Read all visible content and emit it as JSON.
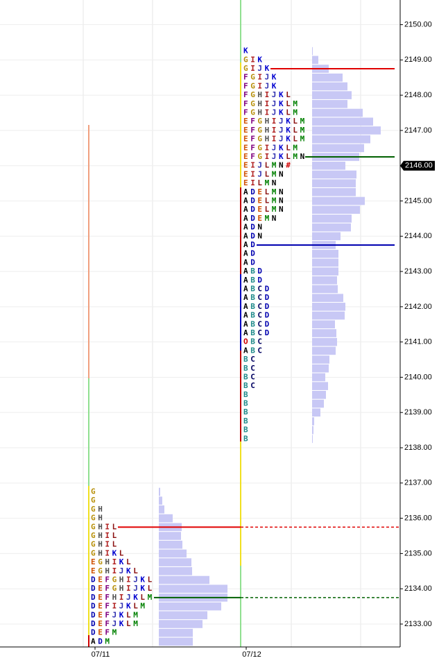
{
  "chart_data": {
    "type": "tpo",
    "ylim": [
      2132.35,
      2150.7
    ],
    "yticks": [
      {
        "value": 2133,
        "label": "2133.00"
      },
      {
        "value": 2134,
        "label": "2134.00"
      },
      {
        "value": 2135,
        "label": "2135.00"
      },
      {
        "value": 2136,
        "label": "2136.00"
      },
      {
        "value": 2137,
        "label": "2137.00"
      },
      {
        "value": 2138,
        "label": "2138.00"
      },
      {
        "value": 2139,
        "label": "2139.00"
      },
      {
        "value": 2140,
        "label": "2140.00"
      },
      {
        "value": 2141,
        "label": "2141.00"
      },
      {
        "value": 2142,
        "label": "2142.00"
      },
      {
        "value": 2143,
        "label": "2143.00"
      },
      {
        "value": 2144,
        "label": "2144.00"
      },
      {
        "value": 2145,
        "label": "2145.00"
      },
      {
        "value": 2146,
        "label": "2146.00"
      },
      {
        "value": 2147,
        "label": "2147.00"
      },
      {
        "value": 2148,
        "label": "2148.00"
      },
      {
        "value": 2149,
        "label": "2149.00"
      },
      {
        "value": 2150,
        "label": "2150.00"
      }
    ],
    "last_price": {
      "value": 2146,
      "label": "2146.00"
    },
    "volume_color": "#c8c8f5",
    "letter_colors": {
      "A": "#000000",
      "B": "#1f8a8a",
      "C": "#000060",
      "D": "#0000b0",
      "E": "#d05000",
      "F": "#800080",
      "G": "#b8900b",
      "H": "#505050",
      "I": "#b02020",
      "J": "#3030b0",
      "K": "#0000d0",
      "L": "#8b1010",
      "M": "#008000",
      "N": "#000000",
      "O": "#d00000",
      "#": "#d00000"
    },
    "sessions": [
      {
        "date": "07/11",
        "lines": [
          {
            "price": 2135.75,
            "color": "#e00000"
          },
          {
            "price": 2133.75,
            "color": "#006000"
          }
        ],
        "rows": [
          {
            "price": 2136.75,
            "tpo": "G",
            "volume": 2
          },
          {
            "price": 2136.5,
            "tpo": "G",
            "volume": 5
          },
          {
            "price": 2136.25,
            "tpo": "GH",
            "volume": 8
          },
          {
            "price": 2136,
            "tpo": "GH",
            "volume": 20
          },
          {
            "price": 2135.75,
            "tpo": "GHIL",
            "volume": 33
          },
          {
            "price": 2135.5,
            "tpo": "GHIL",
            "volume": 32
          },
          {
            "price": 2135.25,
            "tpo": "GHIL",
            "volume": 34
          },
          {
            "price": 2135,
            "tpo": "GHIKL",
            "volume": 40
          },
          {
            "price": 2134.75,
            "tpo": "EGHIKL",
            "volume": 47
          },
          {
            "price": 2134.5,
            "tpo": "EGHIJKL",
            "volume": 48
          },
          {
            "price": 2134.25,
            "tpo": "DEFGHIJKL",
            "volume": 73
          },
          {
            "price": 2134,
            "tpo": "DEFGHIJKL",
            "volume": 99
          },
          {
            "price": 2133.75,
            "tpo": "DEFHIJKLM",
            "volume": 99
          },
          {
            "price": 2133.5,
            "tpo": "DEFIJKLM",
            "volume": 90
          },
          {
            "price": 2133.25,
            "tpo": "DEFJKLM",
            "volume": 70
          },
          {
            "price": 2133,
            "tpo": "DEFJKLM",
            "volume": 63
          },
          {
            "price": 2132.75,
            "tpo": "DEFM",
            "volume": 49
          },
          {
            "price": 2132.5,
            "tpo": "ADM",
            "volume": 49
          }
        ]
      },
      {
        "date": "07/12",
        "lines": [
          {
            "price": 2148.75,
            "color": "#e00000"
          },
          {
            "price": 2146.25,
            "color": "#006000"
          },
          {
            "price": 2143.75,
            "color": "#0000b0"
          }
        ],
        "rows": [
          {
            "price": 2149.25,
            "tpo": "K",
            "volume": 1
          },
          {
            "price": 2149,
            "tpo": "GIK",
            "volume": 9
          },
          {
            "price": 2148.75,
            "tpo": "GIJK",
            "volume": 24
          },
          {
            "price": 2148.5,
            "tpo": "FGIJK",
            "volume": 44
          },
          {
            "price": 2148.25,
            "tpo": "FGIJK",
            "volume": 51
          },
          {
            "price": 2148,
            "tpo": "FGHIJKL",
            "volume": 57
          },
          {
            "price": 2147.75,
            "tpo": "FGHIJKLM",
            "volume": 51
          },
          {
            "price": 2147.5,
            "tpo": "FGHIJKLM",
            "volume": 73
          },
          {
            "price": 2147.25,
            "tpo": "EFGHIJKLM",
            "volume": 88
          },
          {
            "price": 2147,
            "tpo": "EFGHIJKLM",
            "volume": 99
          },
          {
            "price": 2146.75,
            "tpo": "EFGHIJKLM",
            "volume": 84
          },
          {
            "price": 2146.5,
            "tpo": "EFGIJKLM",
            "volume": 75
          },
          {
            "price": 2146.25,
            "tpo": "EFGIJKLMN",
            "volume": 68
          },
          {
            "price": 2146,
            "tpo": "EIJLMN#",
            "volume": 48
          },
          {
            "price": 2145.75,
            "tpo": "EIJLMN",
            "volume": 64
          },
          {
            "price": 2145.5,
            "tpo": "EILMN",
            "volume": 63
          },
          {
            "price": 2145.25,
            "tpo": "ADELMN",
            "volume": 63
          },
          {
            "price": 2145,
            "tpo": "ADELMN",
            "volume": 76
          },
          {
            "price": 2144.75,
            "tpo": "ADELMN",
            "volume": 69
          },
          {
            "price": 2144.5,
            "tpo": "ADEMN",
            "volume": 57
          },
          {
            "price": 2144.25,
            "tpo": "ADN",
            "volume": 56
          },
          {
            "price": 2144,
            "tpo": "ADN",
            "volume": 41
          },
          {
            "price": 2143.75,
            "tpo": "AD",
            "volume": 34
          },
          {
            "price": 2143.5,
            "tpo": "AD",
            "volume": 38
          },
          {
            "price": 2143.25,
            "tpo": "AD",
            "volume": 38
          },
          {
            "price": 2143,
            "tpo": "ABD",
            "volume": 38
          },
          {
            "price": 2142.75,
            "tpo": "ABD",
            "volume": 36
          },
          {
            "price": 2142.5,
            "tpo": "ABCD",
            "volume": 37
          },
          {
            "price": 2142.25,
            "tpo": "ABCD",
            "volume": 45
          },
          {
            "price": 2142,
            "tpo": "ABCD",
            "volume": 48
          },
          {
            "price": 2141.75,
            "tpo": "ABCD",
            "volume": 47
          },
          {
            "price": 2141.5,
            "tpo": "ABCD",
            "volume": 33
          },
          {
            "price": 2141.25,
            "tpo": "ABCD",
            "volume": 35
          },
          {
            "price": 2141,
            "tpo": "OBC",
            "volume": 36
          },
          {
            "price": 2140.75,
            "tpo": "ABC",
            "volume": 34
          },
          {
            "price": 2140.5,
            "tpo": "BC",
            "volume": 25
          },
          {
            "price": 2140.25,
            "tpo": "BC",
            "volume": 24
          },
          {
            "price": 2140,
            "tpo": "BC",
            "volume": 19
          },
          {
            "price": 2139.75,
            "tpo": "BC",
            "volume": 23
          },
          {
            "price": 2139.5,
            "tpo": "B",
            "volume": 20
          },
          {
            "price": 2139.25,
            "tpo": "B",
            "volume": 17
          },
          {
            "price": 2139,
            "tpo": "B",
            "volume": 12
          },
          {
            "price": 2138.75,
            "tpo": "B",
            "volume": 3
          },
          {
            "price": 2138.5,
            "tpo": "B",
            "volume": 2
          },
          {
            "price": 2138.25,
            "tpo": "B",
            "volume": 1
          }
        ]
      }
    ]
  }
}
